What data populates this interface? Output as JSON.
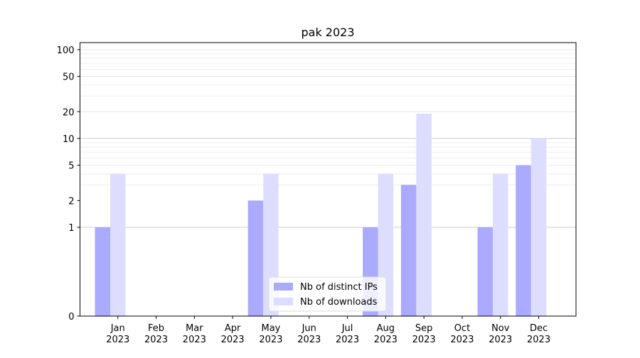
{
  "chart_data": {
    "type": "bar",
    "title": "pak 2023",
    "xlabel": "",
    "ylabel": "",
    "y_scale": "symlog",
    "ylim": [
      0,
      120
    ],
    "y_ticks": [
      0,
      1,
      2,
      5,
      10,
      20,
      50,
      100
    ],
    "y_tick_labels": [
      "0",
      "1",
      "2",
      "5",
      "10",
      "20",
      "50",
      "100"
    ],
    "grid": true,
    "legend_position": "bottom-center",
    "categories": [
      {
        "month": "Jan",
        "year": "2023"
      },
      {
        "month": "Feb",
        "year": "2023"
      },
      {
        "month": "Mar",
        "year": "2023"
      },
      {
        "month": "Apr",
        "year": "2023"
      },
      {
        "month": "May",
        "year": "2023"
      },
      {
        "month": "Jun",
        "year": "2023"
      },
      {
        "month": "Jul",
        "year": "2023"
      },
      {
        "month": "Aug",
        "year": "2023"
      },
      {
        "month": "Sep",
        "year": "2023"
      },
      {
        "month": "Oct",
        "year": "2023"
      },
      {
        "month": "Nov",
        "year": "2023"
      },
      {
        "month": "Dec",
        "year": "2023"
      }
    ],
    "series": [
      {
        "name": "Nb of distinct IPs",
        "color": "#aaaaff",
        "values": [
          1,
          0,
          0,
          0,
          2,
          0,
          0,
          1,
          3,
          0,
          1,
          5
        ]
      },
      {
        "name": "Nb of downloads",
        "color": "#ddddff",
        "values": [
          4,
          0,
          0,
          0,
          4,
          0,
          0,
          4,
          19,
          0,
          4,
          10
        ]
      }
    ]
  }
}
